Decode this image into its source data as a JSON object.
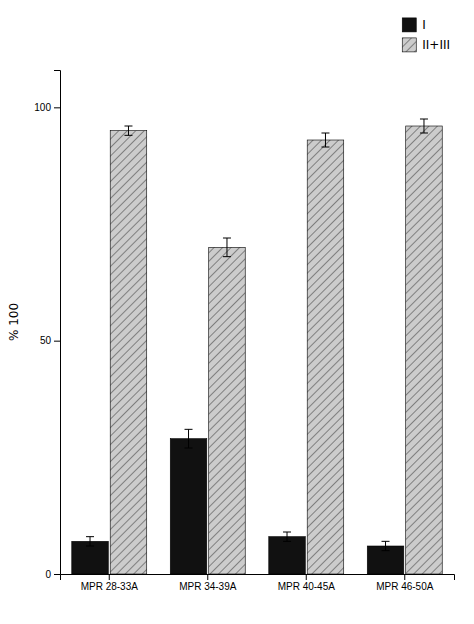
{
  "chart_data": {
    "type": "bar",
    "y_label": "% 100",
    "categories": [
      "MPR 28-33A",
      "MPR 34-39A",
      "MPR 40-45A",
      "MPR 46-50A"
    ],
    "series": [
      {
        "name": "I",
        "color": "#111111",
        "values": [
          7,
          29,
          8,
          6
        ],
        "errors": [
          1.0,
          2.0,
          1.0,
          1.0
        ]
      },
      {
        "name": "II+III",
        "color": "#cccccc",
        "values": [
          95,
          70,
          93,
          96
        ],
        "errors": [
          1.0,
          2.0,
          1.5,
          1.5
        ]
      }
    ],
    "ylim": [
      0,
      108
    ],
    "yticks": [
      0,
      50,
      100
    ],
    "grid": false,
    "legend": "upper right"
  }
}
